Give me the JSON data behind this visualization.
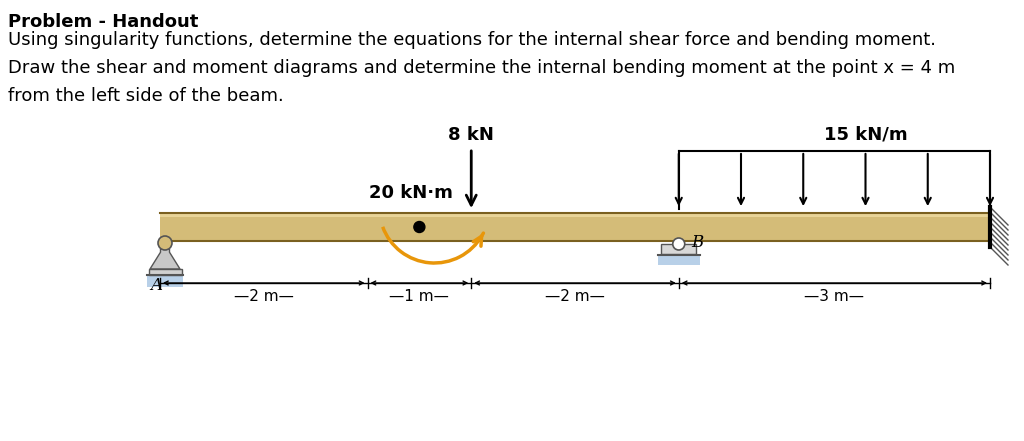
{
  "title_bold": "Problem - Handout",
  "text_line1": "Using singularity functions, determine the equations for the internal shear force and bending moment.",
  "text_line2": "Draw the shear and moment diagrams and determine the internal bending moment at the point x = 4 m",
  "text_line3": "from the left side of the beam.",
  "bg_color": "#ffffff",
  "beam_color": "#d4bc78",
  "beam_top_color": "#b8a060",
  "beam_outline_color": "#7a6020",
  "load_8kN_label": "8 kN",
  "load_moment_label": "20 kN·m",
  "load_dist_label": "15 kN/m",
  "label_A": "A",
  "label_B": "B",
  "moment_arrow_color": "#e8960a",
  "font_size_text": 13,
  "font_size_title": 13,
  "font_size_load": 13,
  "font_size_dim": 11
}
